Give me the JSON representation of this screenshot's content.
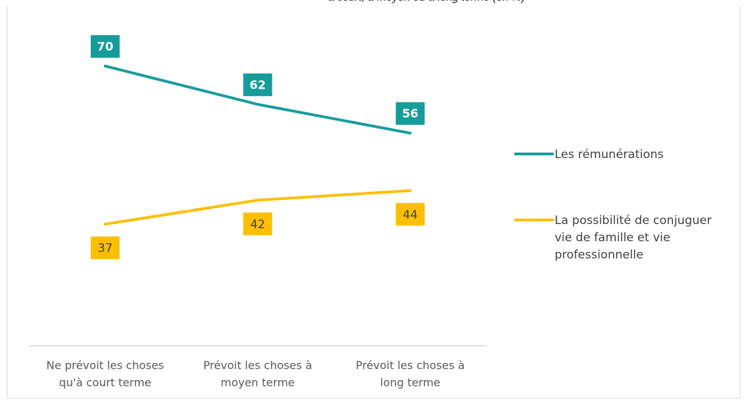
{
  "chart_data": {
    "type": "line",
    "title": "à court, à moyen ou à long terme (en %)",
    "categories": [
      [
        "Ne prévoit les choses",
        "qu'à court terme"
      ],
      [
        "Prévoit les choses à",
        "moyen terme"
      ],
      [
        "Prévoit les choses à",
        "long terme"
      ]
    ],
    "ylim": [
      0,
      100
    ],
    "grid": false,
    "legend_position": "right",
    "series": [
      {
        "name": "Les rémunérations",
        "values": [
          70,
          62,
          56
        ],
        "color": "#179c9c",
        "label_text_color": "#ffffff",
        "label_position": "above"
      },
      {
        "name": [
          "La possibilité de conjuguer",
          "vie de famille et vie",
          "professionnelle"
        ],
        "values": [
          37,
          42,
          44
        ],
        "color": "#ffbf00",
        "label_text_color": "#404040",
        "label_position": "below"
      }
    ]
  }
}
